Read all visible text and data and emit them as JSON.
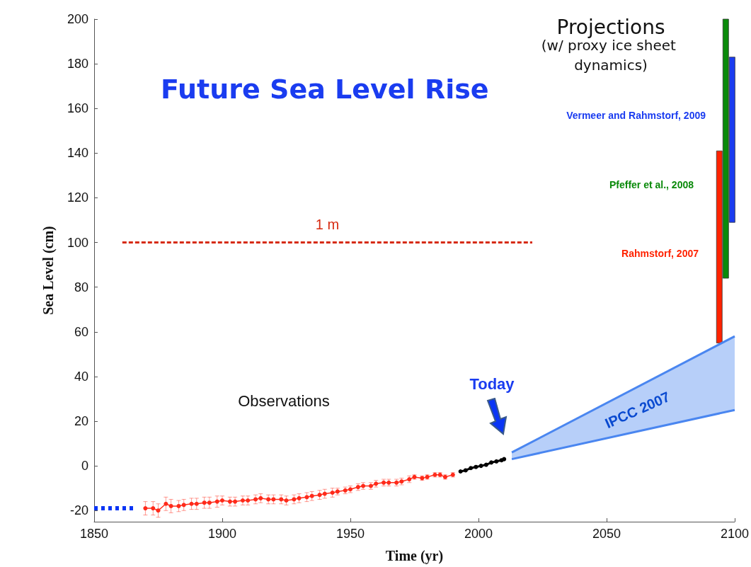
{
  "chart_data": {
    "type": "line",
    "title": "Future Sea Level Rise",
    "xlabel": "Time (yr)",
    "ylabel": "Sea Level (cm)",
    "annotations": [
      "Projections",
      "(w/ proxy ice sheet dynamics)",
      "Observations",
      "Today"
    ],
    "xlim": [
      1850,
      2100
    ],
    "xticks": [
      1850,
      1900,
      1950,
      2000,
      2050,
      2100
    ],
    "ylim": [
      -25,
      200
    ],
    "yticks": [
      -20,
      0,
      20,
      40,
      60,
      80,
      100,
      120,
      140,
      160,
      180,
      200
    ],
    "grid": false,
    "legend": false,
    "marker": "circle",
    "series": [
      {
        "color": "#ff2a1a",
        "x": [
          1870,
          1873,
          1875,
          1878,
          1880,
          1883,
          1885,
          1888,
          1890,
          1893,
          1895,
          1898,
          1900,
          1903,
          1905,
          1908,
          1910,
          1913,
          1915,
          1918,
          1920,
          1923,
          1925,
          1928,
          1930,
          1933,
          1935,
          1938,
          1940,
          1943,
          1945,
          1948,
          1950,
          1953,
          1955,
          1958,
          1960,
          1963,
          1965,
          1968,
          1970,
          1973,
          1975,
          1978,
          1980,
          1983,
          1985,
          1987,
          1990
        ],
        "values": [
          -19,
          -19,
          -20,
          -17,
          -18,
          -18,
          -17.5,
          -17,
          -17,
          -16.5,
          -16.5,
          -16,
          -15.5,
          -16,
          -16,
          -15.5,
          -15.5,
          -15,
          -14.5,
          -15,
          -15,
          -15,
          -15.5,
          -15,
          -14.5,
          -14,
          -13.5,
          -13,
          -12.5,
          -12,
          -11.5,
          -11,
          -10.5,
          -9.5,
          -9,
          -9,
          -8,
          -7.5,
          -7.5,
          -7.5,
          -7,
          -6,
          -5,
          -5.5,
          -5,
          -4,
          -4,
          -5,
          -4
        ],
        "errors": [
          3,
          3,
          3,
          3,
          3,
          2.5,
          2.5,
          2.5,
          2.5,
          2.5,
          2.5,
          2.5,
          2,
          2,
          2,
          2,
          2,
          2,
          2,
          2,
          2,
          2,
          2,
          2,
          2,
          2,
          2,
          2,
          2,
          2,
          1.5,
          1.5,
          1.5,
          1.5,
          1.5,
          1.5,
          1.5,
          1.5,
          1.5,
          1.5,
          1.5,
          1.5,
          1,
          1,
          1,
          1,
          1,
          1,
          1
        ]
      },
      {
        "color": "#000000",
        "x": [
          1993,
          1995,
          1997,
          1999,
          2001,
          2003,
          2005,
          2007,
          2009,
          2010
        ],
        "values": [
          -2.5,
          -2,
          -1,
          -0.5,
          0,
          0.5,
          1.5,
          2,
          2.5,
          3
        ]
      },
      {
        "color": "#0a35f5",
        "marker": "none",
        "line_style": "dotted",
        "x": [
          1850,
          1866
        ],
        "values": [
          -19,
          -19
        ]
      },
      {
        "name": "1 m",
        "color": "#d62a10",
        "marker": "none",
        "line_style": "dashed",
        "x": [
          1861,
          2021
        ],
        "values": [
          100,
          100
        ]
      },
      {
        "type": "area",
        "name": "IPCC 2007",
        "color": "#4a86f0",
        "marker": "none",
        "x": [
          2013,
          2100
        ],
        "values": [
          6,
          58
        ]
      },
      {
        "color": "#4a86f0",
        "marker": "none",
        "x": [
          2013,
          2100
        ],
        "values": [
          3,
          25
        ]
      },
      {
        "type": "bar",
        "name": "Rahmstorf, 2007",
        "color": "#ff2200",
        "x": [
          2094
        ],
        "base": [
          55
        ],
        "values": [
          86
        ]
      },
      {
        "type": "bar",
        "name": "Pfeffer et al., 2008",
        "color": "#0a8a0a",
        "x": [
          2096.5
        ],
        "base": [
          84
        ],
        "values": [
          116
        ]
      },
      {
        "type": "bar",
        "name": "Vermeer and Rahmstorf, 2009",
        "color": "#1a3cf0",
        "x": [
          2099
        ],
        "base": [
          109
        ],
        "values": [
          74
        ]
      }
    ]
  }
}
